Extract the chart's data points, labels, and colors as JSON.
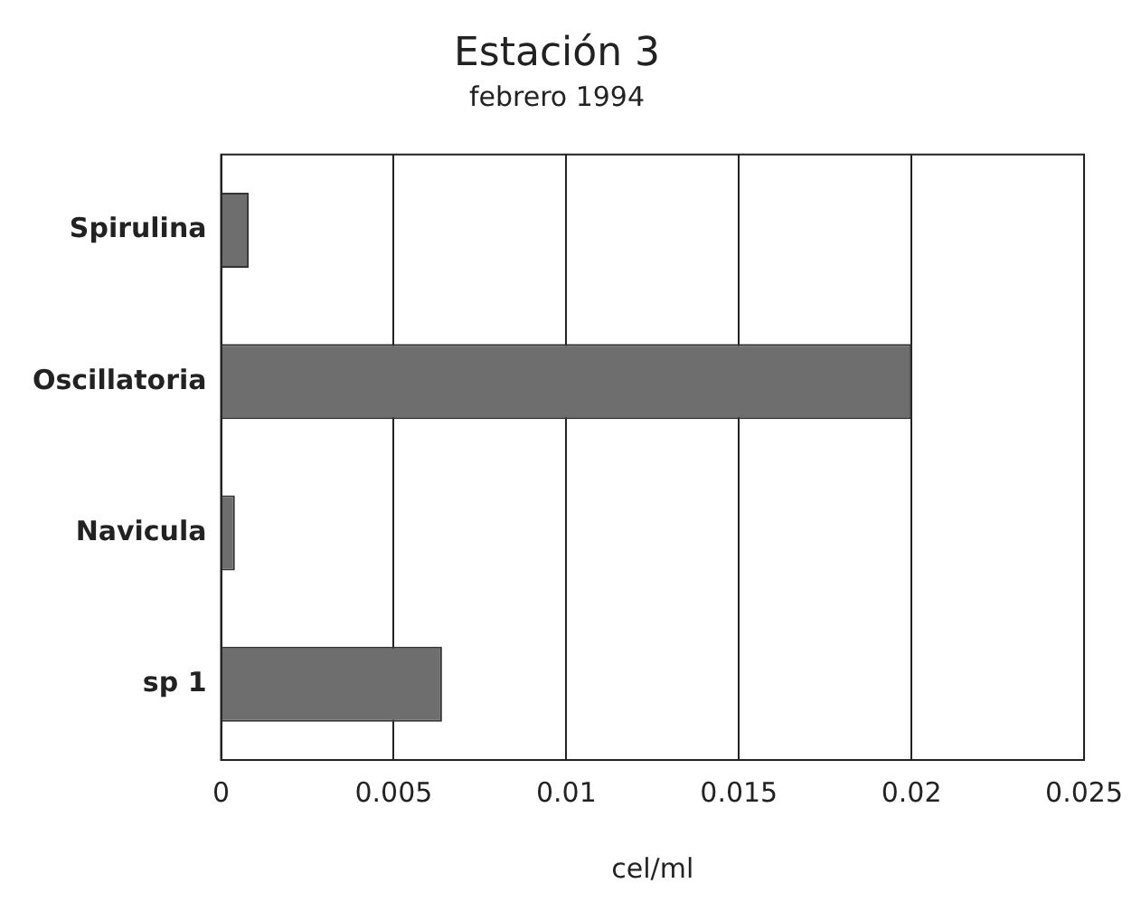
{
  "chart_data": {
    "type": "bar",
    "orientation": "horizontal",
    "title": "Estación 3",
    "subtitle": "febrero 1994",
    "xlabel": "cel/ml",
    "categories": [
      "Spirulina",
      "Oscillatoria",
      "Navicula",
      "sp 1"
    ],
    "values": [
      0.0008,
      0.02,
      0.0004,
      0.0064
    ],
    "color": "#6e6e6e",
    "xlim": [
      0,
      0.025
    ],
    "xticks": [
      0,
      0.005,
      0.01,
      0.015,
      0.02,
      0.025
    ],
    "grid": "x",
    "legend": false
  }
}
